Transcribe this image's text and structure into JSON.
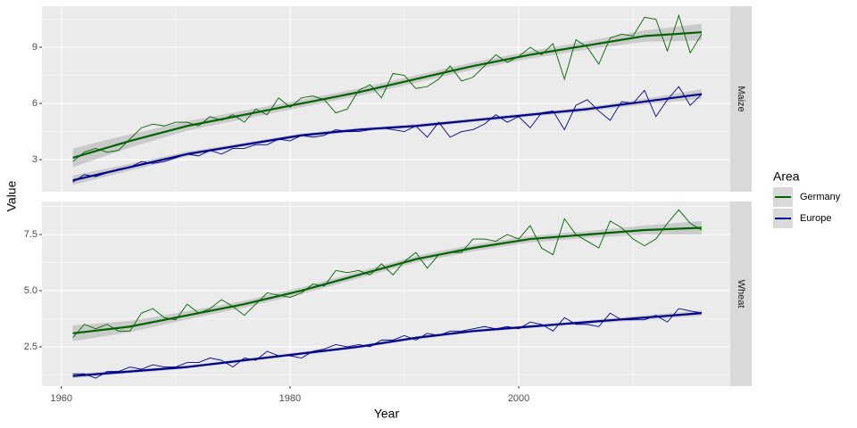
{
  "xlabel": "Year",
  "ylabel": "Value",
  "legend": {
    "title": "Area"
  },
  "chart_data": [
    {
      "type": "line",
      "facet": "Maize",
      "x": [
        1961,
        1962,
        1963,
        1964,
        1965,
        1966,
        1967,
        1968,
        1969,
        1970,
        1971,
        1972,
        1973,
        1974,
        1975,
        1976,
        1977,
        1978,
        1979,
        1980,
        1981,
        1982,
        1983,
        1984,
        1985,
        1986,
        1987,
        1988,
        1989,
        1990,
        1991,
        1992,
        1993,
        1994,
        1995,
        1996,
        1997,
        1998,
        1999,
        2000,
        2001,
        2002,
        2003,
        2004,
        2005,
        2006,
        2007,
        2008,
        2009,
        2010,
        2011,
        2012,
        2013,
        2014,
        2015,
        2016
      ],
      "trend_x": [
        1961,
        1966,
        1971,
        1976,
        1981,
        1986,
        1991,
        1996,
        2001,
        2006,
        2011,
        2016
      ],
      "xlim": [
        1958.3,
        2018.5
      ],
      "xticks": [
        1960,
        1980,
        2000
      ],
      "x_minor_ticks": [
        1970,
        1990,
        2010
      ],
      "ylim": [
        1.29,
        11.19
      ],
      "yticks": [
        3,
        6,
        9
      ],
      "y_minor_ticks": [
        4.5,
        7.5,
        10.5
      ],
      "grid": true,
      "series": [
        {
          "name": "Germany",
          "color": "#006400",
          "values": [
            2.9,
            3.4,
            3.6,
            3.4,
            3.5,
            4.1,
            4.7,
            4.9,
            4.8,
            5.0,
            5.0,
            4.8,
            5.3,
            5.1,
            5.4,
            5.0,
            5.7,
            5.4,
            6.3,
            5.8,
            6.3,
            6.4,
            6.2,
            5.5,
            5.7,
            6.7,
            7.0,
            6.3,
            7.6,
            7.5,
            6.8,
            6.9,
            7.3,
            8.0,
            7.2,
            7.4,
            8.0,
            8.6,
            8.2,
            8.5,
            9.0,
            8.6,
            9.2,
            7.3,
            9.4,
            9.0,
            8.1,
            9.5,
            9.7,
            9.6,
            10.6,
            10.5,
            8.8,
            10.7,
            8.7,
            9.7
          ],
          "trend": [
            3.1,
            4.0,
            4.8,
            5.4,
            6.0,
            6.6,
            7.3,
            8.0,
            8.6,
            9.1,
            9.6,
            9.8
          ],
          "trend_lower": [
            2.6,
            3.65,
            4.55,
            5.18,
            5.8,
            6.4,
            7.1,
            7.8,
            8.4,
            8.88,
            9.3,
            9.35
          ],
          "trend_upper": [
            3.6,
            4.35,
            5.05,
            5.62,
            6.2,
            6.8,
            7.5,
            8.2,
            8.8,
            9.32,
            9.9,
            10.25
          ]
        },
        {
          "name": "Europe",
          "color": "#00008b",
          "values": [
            1.8,
            2.2,
            2.1,
            2.3,
            2.5,
            2.6,
            2.9,
            2.8,
            2.9,
            3.1,
            3.3,
            3.2,
            3.5,
            3.3,
            3.6,
            3.6,
            3.8,
            3.8,
            4.1,
            4.0,
            4.3,
            4.2,
            4.3,
            4.6,
            4.5,
            4.5,
            4.6,
            4.7,
            4.6,
            4.5,
            4.8,
            4.2,
            5.0,
            4.2,
            4.5,
            4.6,
            4.9,
            5.4,
            5.0,
            5.3,
            4.7,
            5.5,
            5.6,
            4.6,
            5.9,
            6.2,
            5.6,
            5.1,
            6.1,
            6.0,
            6.7,
            5.3,
            6.2,
            6.9,
            5.9,
            6.5
          ],
          "trend": [
            1.9,
            2.6,
            3.3,
            3.8,
            4.3,
            4.6,
            4.8,
            5.1,
            5.4,
            5.7,
            6.1,
            6.5
          ],
          "trend_lower": [
            1.65,
            2.42,
            3.17,
            3.7,
            4.2,
            4.5,
            4.7,
            5.0,
            5.3,
            5.58,
            5.95,
            6.25
          ],
          "trend_upper": [
            2.15,
            2.78,
            3.43,
            3.9,
            4.4,
            4.7,
            4.9,
            5.2,
            5.5,
            5.82,
            6.25,
            6.75
          ]
        }
      ]
    },
    {
      "type": "line",
      "facet": "Wheat",
      "x": [
        1961,
        1962,
        1963,
        1964,
        1965,
        1966,
        1967,
        1968,
        1969,
        1970,
        1971,
        1972,
        1973,
        1974,
        1975,
        1976,
        1977,
        1978,
        1979,
        1980,
        1981,
        1982,
        1983,
        1984,
        1985,
        1986,
        1987,
        1988,
        1989,
        1990,
        1991,
        1992,
        1993,
        1994,
        1995,
        1996,
        1997,
        1998,
        1999,
        2000,
        2001,
        2002,
        2003,
        2004,
        2005,
        2006,
        2007,
        2008,
        2009,
        2010,
        2011,
        2012,
        2013,
        2014,
        2015,
        2016
      ],
      "trend_x": [
        1961,
        1966,
        1971,
        1976,
        1981,
        1986,
        1991,
        1996,
        2001,
        2006,
        2011,
        2016
      ],
      "xlim": [
        1958.3,
        2018.5
      ],
      "xticks": [
        1960,
        1980,
        2000
      ],
      "x_minor_ticks": [
        1970,
        1990,
        2010
      ],
      "ylim": [
        0.75,
        8.97
      ],
      "yticks": [
        2.5,
        {
          "value": 5,
          "label": "5.0"
        },
        7.5
      ],
      "y_minor_ticks": [
        1.25,
        3.75,
        6.25,
        8.75
      ],
      "grid": true,
      "series": [
        {
          "name": "Germany",
          "color": "#006400",
          "values": [
            2.9,
            3.5,
            3.3,
            3.5,
            3.2,
            3.2,
            4.0,
            4.2,
            3.8,
            3.7,
            4.4,
            4.0,
            4.2,
            4.6,
            4.3,
            3.9,
            4.4,
            4.9,
            4.8,
            4.7,
            4.9,
            5.3,
            5.2,
            5.9,
            5.8,
            5.9,
            5.7,
            6.2,
            5.7,
            6.3,
            6.7,
            6.0,
            6.6,
            6.7,
            6.7,
            7.3,
            7.3,
            7.2,
            7.5,
            7.3,
            7.9,
            6.9,
            6.6,
            8.2,
            7.5,
            7.2,
            6.9,
            8.1,
            7.8,
            7.3,
            7.0,
            7.3,
            8.0,
            8.6,
            8.0,
            7.7
          ],
          "trend": [
            3.1,
            3.4,
            3.9,
            4.4,
            5.0,
            5.7,
            6.4,
            6.9,
            7.3,
            7.5,
            7.7,
            7.8
          ],
          "trend_lower": [
            2.75,
            3.15,
            3.72,
            4.25,
            4.85,
            5.55,
            6.25,
            6.75,
            7.15,
            7.35,
            7.5,
            7.5
          ],
          "trend_upper": [
            3.45,
            3.65,
            4.08,
            4.55,
            5.15,
            5.85,
            6.55,
            7.05,
            7.45,
            7.65,
            7.9,
            8.1
          ]
        },
        {
          "name": "Europe",
          "color": "#00008b",
          "values": [
            1.3,
            1.3,
            1.1,
            1.4,
            1.4,
            1.6,
            1.5,
            1.7,
            1.6,
            1.6,
            1.8,
            1.8,
            2.0,
            1.9,
            1.6,
            2.0,
            1.9,
            2.3,
            2.1,
            2.1,
            2.0,
            2.3,
            2.4,
            2.6,
            2.5,
            2.6,
            2.5,
            2.8,
            2.8,
            3.0,
            2.8,
            3.1,
            3.0,
            3.2,
            3.2,
            3.3,
            3.4,
            3.3,
            3.4,
            3.3,
            3.6,
            3.5,
            3.2,
            3.8,
            3.5,
            3.5,
            3.4,
            4.0,
            3.7,
            3.7,
            3.7,
            3.9,
            3.6,
            4.2,
            4.1,
            4.0
          ],
          "trend": [
            1.2,
            1.4,
            1.6,
            1.9,
            2.2,
            2.5,
            2.9,
            3.2,
            3.4,
            3.6,
            3.8,
            4.0
          ],
          "trend_lower": [
            1.1,
            1.32,
            1.53,
            1.83,
            2.13,
            2.43,
            2.83,
            3.13,
            3.33,
            3.52,
            3.7,
            3.88
          ],
          "trend_upper": [
            1.3,
            1.48,
            1.67,
            1.97,
            2.27,
            2.57,
            2.97,
            3.27,
            3.47,
            3.68,
            3.9,
            4.12
          ]
        }
      ]
    }
  ]
}
